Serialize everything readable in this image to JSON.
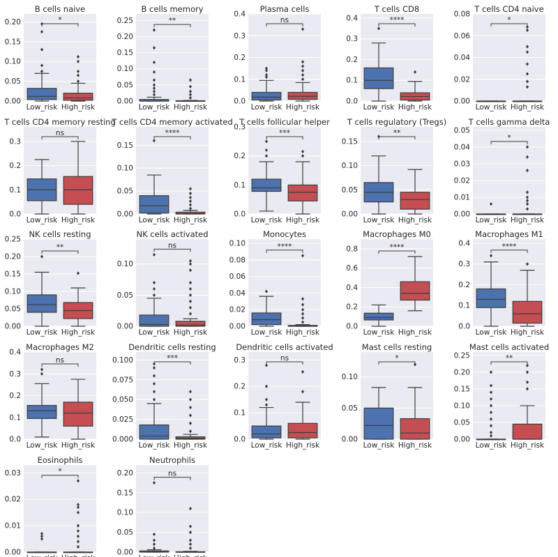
{
  "figure": {
    "categories": [
      "Low_risk",
      "High_risk"
    ],
    "colors": {
      "low": "#4c72b0",
      "high": "#c44e52",
      "panel_bg": "#eaeaf2",
      "grid": "#ffffff",
      "text": "#262626",
      "outline": "#3d3d3d"
    }
  },
  "chart_data": [
    {
      "type": "box",
      "title": "B cells naive",
      "categories": [
        "Low_risk",
        "High_risk"
      ],
      "ylim": [
        0,
        0.22
      ],
      "yticks": [
        "0.00",
        "0.05",
        "0.10",
        "0.15",
        "0.20"
      ],
      "significance": "*",
      "boxes": [
        {
          "whisker_low": 0,
          "q1": 0.004,
          "median": 0.012,
          "q3": 0.032,
          "whisker_high": 0.07,
          "outliers": [
            0.075,
            0.09,
            0.13,
            0.175,
            0.195
          ]
        },
        {
          "whisker_low": 0,
          "q1": 0.002,
          "median": 0.008,
          "q3": 0.02,
          "whisker_high": 0.045,
          "outliers": [
            0.05,
            0.065,
            0.075,
            0.1,
            0.112
          ]
        }
      ]
    },
    {
      "type": "box",
      "title": "B cells memory",
      "categories": [
        "Low_risk",
        "High_risk"
      ],
      "ylim": [
        0,
        0.27
      ],
      "yticks": [
        "0.00",
        "0.05",
        "0.10",
        "0.15",
        "0.20",
        "0.25"
      ],
      "significance": "**",
      "boxes": [
        {
          "whisker_low": 0,
          "q1": 0,
          "median": 0,
          "q3": 0.005,
          "whisker_high": 0.012,
          "outliers": [
            0.02,
            0.03,
            0.04,
            0.05,
            0.065,
            0.09,
            0.12,
            0.165,
            0.22
          ]
        },
        {
          "whisker_low": 0,
          "q1": 0,
          "median": 0,
          "q3": 0.001,
          "whisker_high": 0.002,
          "outliers": [
            0.01,
            0.02,
            0.03,
            0.045,
            0.065
          ]
        }
      ]
    },
    {
      "type": "box",
      "title": "Plasma cells",
      "categories": [
        "Low_risk",
        "High_risk"
      ],
      "ylim": [
        0,
        0.4
      ],
      "yticks": [
        "0.0",
        "0.1",
        "0.2",
        "0.3",
        "0.4"
      ],
      "significance": "ns",
      "boxes": [
        {
          "whisker_low": 0,
          "q1": 0.005,
          "median": 0.018,
          "q3": 0.04,
          "whisker_high": 0.095,
          "outliers": [
            0.11,
            0.12,
            0.14,
            0.15
          ]
        },
        {
          "whisker_low": 0,
          "q1": 0.008,
          "median": 0.022,
          "q3": 0.04,
          "whisker_high": 0.085,
          "outliers": [
            0.1,
            0.12,
            0.14,
            0.16,
            0.18,
            0.33
          ]
        }
      ]
    },
    {
      "type": "box",
      "title": "T cells CD8",
      "categories": [
        "Low_risk",
        "High_risk"
      ],
      "ylim": [
        0,
        0.42
      ],
      "yticks": [
        "0.0",
        "0.1",
        "0.2",
        "0.3",
        "0.4"
      ],
      "significance": "****",
      "boxes": [
        {
          "whisker_low": 0,
          "q1": 0.06,
          "median": 0.1,
          "q3": 0.16,
          "whisker_high": 0.28,
          "outliers": [
            0.35
          ]
        },
        {
          "whisker_low": 0,
          "q1": 0.005,
          "median": 0.022,
          "q3": 0.04,
          "whisker_high": 0.095,
          "outliers": [
            0.14
          ]
        }
      ]
    },
    {
      "type": "box",
      "title": "T cells CD4 naive",
      "categories": [
        "Low_risk",
        "High_risk"
      ],
      "ylim": [
        0,
        0.08
      ],
      "yticks": [
        "0.00",
        "0.02",
        "0.04",
        "0.06",
        "0.08"
      ],
      "significance": "*",
      "boxes": [
        {
          "whisker_low": 0,
          "q1": 0,
          "median": 0,
          "q3": 0,
          "whisker_high": 0,
          "outliers": []
        },
        {
          "whisker_low": 0,
          "q1": 0,
          "median": 0,
          "q3": 0,
          "whisker_high": 0,
          "outliers": [
            0.013,
            0.018,
            0.025,
            0.034,
            0.045,
            0.05,
            0.065,
            0.068
          ]
        }
      ]
    },
    {
      "type": "box",
      "title": "T cells CD4 memory resting",
      "categories": [
        "Low_risk",
        "High_risk"
      ],
      "ylim": [
        0,
        0.36
      ],
      "yticks": [
        "0.0",
        "0.1",
        "0.2",
        "0.3"
      ],
      "significance": "ns",
      "boxes": [
        {
          "whisker_low": 0,
          "q1": 0.055,
          "median": 0.1,
          "q3": 0.145,
          "whisker_high": 0.225,
          "outliers": []
        },
        {
          "whisker_low": 0,
          "q1": 0.04,
          "median": 0.1,
          "q3": 0.155,
          "whisker_high": 0.3,
          "outliers": []
        }
      ]
    },
    {
      "type": "box",
      "title": "T cells CD4 memory activated",
      "categories": [
        "Low_risk",
        "High_risk"
      ],
      "ylim": [
        0,
        0.19
      ],
      "yticks": [
        "0.00",
        "0.05",
        "0.10",
        "0.15"
      ],
      "significance": "****",
      "boxes": [
        {
          "whisker_low": 0,
          "q1": 0.002,
          "median": 0.018,
          "q3": 0.04,
          "whisker_high": 0.085,
          "outliers": [
            0.16
          ]
        },
        {
          "whisker_low": 0,
          "q1": 0,
          "median": 0.001,
          "q3": 0.004,
          "whisker_high": 0.008,
          "outliers": [
            0.012,
            0.02,
            0.028,
            0.036,
            0.045,
            0.055
          ]
        }
      ]
    },
    {
      "type": "box",
      "title": "T cells follicular helper",
      "categories": [
        "Low_risk",
        "High_risk"
      ],
      "ylim": [
        0,
        0.3
      ],
      "yticks": [
        "0.0",
        "0.1",
        "0.2",
        "0.3"
      ],
      "significance": "***",
      "boxes": [
        {
          "whisker_low": 0.01,
          "q1": 0.078,
          "median": 0.09,
          "q3": 0.12,
          "whisker_high": 0.18,
          "outliers": [
            0.2,
            0.22,
            0.25
          ]
        },
        {
          "whisker_low": 0,
          "q1": 0.045,
          "median": 0.075,
          "q3": 0.1,
          "whisker_high": 0.18,
          "outliers": [
            0.2,
            0.215
          ]
        }
      ]
    },
    {
      "type": "box",
      "title": "T cells regulatory (Tregs)",
      "categories": [
        "Low_risk",
        "High_risk"
      ],
      "ylim": [
        0,
        0.18
      ],
      "yticks": [
        "0.00",
        "0.05",
        "0.10",
        "0.15"
      ],
      "significance": "**",
      "boxes": [
        {
          "whisker_low": 0,
          "q1": 0.025,
          "median": 0.045,
          "q3": 0.065,
          "whisker_high": 0.12,
          "outliers": [
            0.16
          ]
        },
        {
          "whisker_low": 0,
          "q1": 0.01,
          "median": 0.03,
          "q3": 0.045,
          "whisker_high": 0.092,
          "outliers": []
        }
      ]
    },
    {
      "type": "box",
      "title": "T cells gamma delta",
      "categories": [
        "Low_risk",
        "High_risk"
      ],
      "ylim": [
        0,
        0.052
      ],
      "yticks": [
        "0.00",
        "0.01",
        "0.02",
        "0.03",
        "0.04",
        "0.05"
      ],
      "significance": "*",
      "boxes": [
        {
          "whisker_low": 0,
          "q1": 0,
          "median": 0,
          "q3": 0,
          "whisker_high": 0,
          "outliers": [
            0.006
          ]
        },
        {
          "whisker_low": 0,
          "q1": 0,
          "median": 0,
          "q3": 0,
          "whisker_high": 0,
          "outliers": [
            0.003,
            0.006,
            0.008,
            0.01,
            0.013,
            0.026,
            0.034,
            0.04
          ]
        }
      ]
    },
    {
      "type": "box",
      "title": "NK cells resting",
      "categories": [
        "Low_risk",
        "High_risk"
      ],
      "ylim": [
        0,
        0.25
      ],
      "yticks": [
        "0.00",
        "0.05",
        "0.10",
        "0.15",
        "0.20",
        "0.25"
      ],
      "significance": "**",
      "boxes": [
        {
          "whisker_low": 0,
          "q1": 0.04,
          "median": 0.062,
          "q3": 0.09,
          "whisker_high": 0.155,
          "outliers": [
            0.2
          ]
        },
        {
          "whisker_low": 0,
          "q1": 0.022,
          "median": 0.045,
          "q3": 0.068,
          "whisker_high": 0.11,
          "outliers": [
            0.152
          ]
        }
      ]
    },
    {
      "type": "box",
      "title": "NK cells activated",
      "categories": [
        "Low_risk",
        "High_risk"
      ],
      "ylim": [
        0,
        0.14
      ],
      "yticks": [
        "0.00",
        "0.05",
        "0.10"
      ],
      "significance": "ns",
      "boxes": [
        {
          "whisker_low": 0,
          "q1": 0,
          "median": 0.003,
          "q3": 0.018,
          "whisker_high": 0.045,
          "outliers": [
            0.05,
            0.06,
            0.07,
            0.115
          ]
        },
        {
          "whisker_low": 0,
          "q1": 0,
          "median": 0.002,
          "q3": 0.008,
          "whisker_high": 0.012,
          "outliers": [
            0.02,
            0.03,
            0.04,
            0.05,
            0.06,
            0.07,
            0.09,
            0.1,
            0.105
          ]
        }
      ]
    },
    {
      "type": "box",
      "title": "Monocytes",
      "categories": [
        "Low_risk",
        "High_risk"
      ],
      "ylim": [
        0,
        0.105
      ],
      "yticks": [
        "0.00",
        "0.02",
        "0.04",
        "0.06",
        "0.08",
        "0.10"
      ],
      "significance": "****",
      "boxes": [
        {
          "whisker_low": 0,
          "q1": 0.002,
          "median": 0.008,
          "q3": 0.016,
          "whisker_high": 0.036,
          "outliers": [
            0.042
          ]
        },
        {
          "whisker_low": 0,
          "q1": 0,
          "median": 0,
          "q3": 0.001,
          "whisker_high": 0.002,
          "outliers": [
            0.005,
            0.01,
            0.015,
            0.02,
            0.026,
            0.033,
            0.085
          ]
        }
      ]
    },
    {
      "type": "box",
      "title": "Macrophages M0",
      "categories": [
        "Low_risk",
        "High_risk"
      ],
      "ylim": [
        0,
        0.9
      ],
      "yticks": [
        "0.0",
        "0.2",
        "0.4",
        "0.6",
        "0.8"
      ],
      "significance": "****",
      "boxes": [
        {
          "whisker_low": 0,
          "q1": 0.065,
          "median": 0.09,
          "q3": 0.135,
          "whisker_high": 0.22,
          "outliers": []
        },
        {
          "whisker_low": 0.16,
          "q1": 0.27,
          "median": 0.34,
          "q3": 0.46,
          "whisker_high": 0.72,
          "outliers": []
        }
      ]
    },
    {
      "type": "box",
      "title": "Macrophages M1",
      "categories": [
        "Low_risk",
        "High_risk"
      ],
      "ylim": [
        0,
        0.42
      ],
      "yticks": [
        "0.0",
        "0.1",
        "0.2",
        "0.3",
        "0.4"
      ],
      "significance": "****",
      "boxes": [
        {
          "whisker_low": 0,
          "q1": 0.09,
          "median": 0.13,
          "q3": 0.18,
          "whisker_high": 0.31,
          "outliers": [
            0.34
          ]
        },
        {
          "whisker_low": 0,
          "q1": 0.015,
          "median": 0.06,
          "q3": 0.12,
          "whisker_high": 0.27,
          "outliers": [
            0.3
          ]
        }
      ]
    },
    {
      "type": "box",
      "title": "Macrophages M2",
      "categories": [
        "Low_risk",
        "High_risk"
      ],
      "ylim": [
        0,
        0.4
      ],
      "yticks": [
        "0.0",
        "0.1",
        "0.2",
        "0.3",
        "0.4"
      ],
      "significance": "ns",
      "boxes": [
        {
          "whisker_low": 0.01,
          "q1": 0.095,
          "median": 0.13,
          "q3": 0.155,
          "whisker_high": 0.255,
          "outliers": [
            0.3,
            0.32
          ]
        },
        {
          "whisker_low": 0,
          "q1": 0.06,
          "median": 0.12,
          "q3": 0.17,
          "whisker_high": 0.275,
          "outliers": []
        }
      ]
    },
    {
      "type": "box",
      "title": "Dendritic cells resting",
      "categories": [
        "Low_risk",
        "High_risk"
      ],
      "ylim": [
        0,
        0.11
      ],
      "yticks": [
        "0.000",
        "0.025",
        "0.050",
        "0.075",
        "0.100"
      ],
      "significance": "***",
      "boxes": [
        {
          "whisker_low": 0,
          "q1": 0,
          "median": 0.004,
          "q3": 0.018,
          "whisker_high": 0.045,
          "outliers": [
            0.05,
            0.06,
            0.07,
            0.08,
            0.09,
            0.095
          ]
        },
        {
          "whisker_low": 0,
          "q1": 0,
          "median": 0.001,
          "q3": 0.003,
          "whisker_high": 0.006,
          "outliers": [
            0.01,
            0.02,
            0.03,
            0.04,
            0.05,
            0.06
          ]
        }
      ]
    },
    {
      "type": "box",
      "title": "Dendritic cells activated",
      "categories": [
        "Low_risk",
        "High_risk"
      ],
      "ylim": [
        0,
        0.33
      ],
      "yticks": [
        "0.0",
        "0.1",
        "0.2",
        "0.3"
      ],
      "significance": "ns",
      "boxes": [
        {
          "whisker_low": 0,
          "q1": 0.005,
          "median": 0.02,
          "q3": 0.05,
          "whisker_high": 0.12,
          "outliers": [
            0.13,
            0.15,
            0.2,
            0.28
          ]
        },
        {
          "whisker_low": 0,
          "q1": 0.005,
          "median": 0.025,
          "q3": 0.06,
          "whisker_high": 0.14,
          "outliers": [
            0.18,
            0.255
          ]
        }
      ]
    },
    {
      "type": "box",
      "title": "Mast cells resting",
      "categories": [
        "Low_risk",
        "High_risk"
      ],
      "ylim": [
        0,
        0.14
      ],
      "yticks": [
        "0.00",
        "0.05",
        "0.10"
      ],
      "significance": "*",
      "boxes": [
        {
          "whisker_low": 0,
          "q1": 0,
          "median": 0.022,
          "q3": 0.05,
          "whisker_high": 0.083,
          "outliers": []
        },
        {
          "whisker_low": 0,
          "q1": 0,
          "median": 0.01,
          "q3": 0.033,
          "whisker_high": 0.083,
          "outliers": [
            0.12
          ]
        }
      ]
    },
    {
      "type": "box",
      "title": "Mast cells activated",
      "categories": [
        "Low_risk",
        "High_risk"
      ],
      "ylim": [
        0,
        0.26
      ],
      "yticks": [
        "0.00",
        "0.05",
        "0.10",
        "0.15",
        "0.20",
        "0.25"
      ],
      "significance": "**",
      "boxes": [
        {
          "whisker_low": 0,
          "q1": 0,
          "median": 0,
          "q3": 0,
          "whisker_high": 0,
          "outliers": [
            0.01,
            0.02,
            0.04,
            0.06,
            0.08,
            0.1,
            0.12,
            0.14,
            0.16,
            0.2
          ]
        },
        {
          "whisker_low": 0,
          "q1": 0,
          "median": 0,
          "q3": 0.045,
          "whisker_high": 0.1,
          "outliers": [
            0.15,
            0.17,
            0.2,
            0.22
          ]
        }
      ]
    },
    {
      "type": "box",
      "title": "Eosinophils",
      "categories": [
        "Low_risk",
        "High_risk"
      ],
      "ylim": [
        0,
        0.033
      ],
      "yticks": [
        "0.00",
        "0.01",
        "0.02",
        "0.03"
      ],
      "significance": "*",
      "boxes": [
        {
          "whisker_low": 0,
          "q1": 0,
          "median": 0,
          "q3": 0,
          "whisker_high": 0,
          "outliers": [
            0.005,
            0.006,
            0.007
          ]
        },
        {
          "whisker_low": 0,
          "q1": 0,
          "median": 0,
          "q3": 0,
          "whisker_high": 0,
          "outliers": [
            0.002,
            0.004,
            0.006,
            0.008,
            0.01,
            0.015,
            0.017,
            0.018,
            0.027
          ]
        }
      ]
    },
    {
      "type": "box",
      "title": "Neutrophils",
      "categories": [
        "Low_risk",
        "High_risk"
      ],
      "ylim": [
        0,
        0.22
      ],
      "yticks": [
        "0.00",
        "0.05",
        "0.10",
        "0.15",
        "0.20"
      ],
      "significance": "ns",
      "boxes": [
        {
          "whisker_low": 0,
          "q1": 0,
          "median": 0.001,
          "q3": 0.003,
          "whisker_high": 0.006,
          "outliers": [
            0.01,
            0.02,
            0.03,
            0.045,
            0.175
          ]
        },
        {
          "whisker_low": 0,
          "q1": 0,
          "median": 0,
          "q3": 0.001,
          "whisker_high": 0.002,
          "outliers": [
            0.01,
            0.02,
            0.03,
            0.05,
            0.065,
            0.11
          ]
        }
      ]
    }
  ]
}
